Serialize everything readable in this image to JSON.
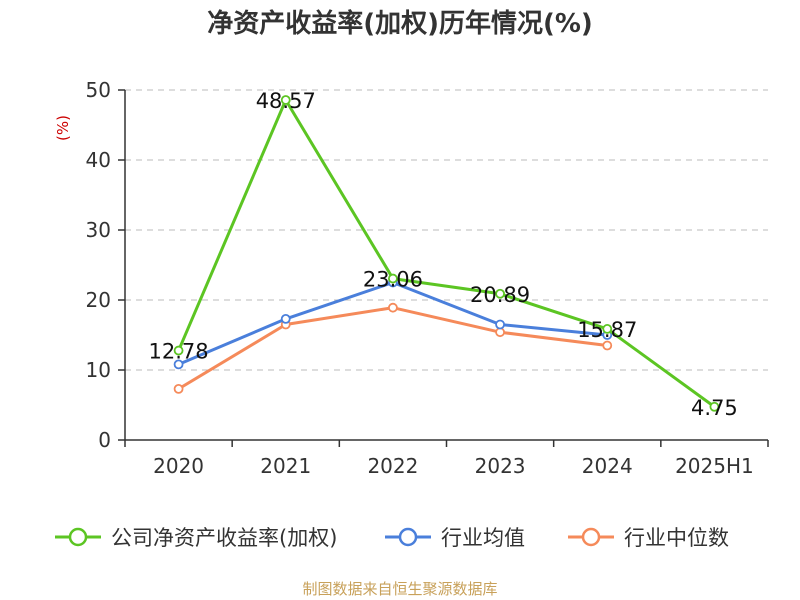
{
  "chart_data": {
    "type": "line",
    "title": "净资产收益率(加权)历年情况(%)",
    "ylabel": "(%)",
    "categories": [
      "2020",
      "2021",
      "2022",
      "2023",
      "2024",
      "2025H1"
    ],
    "ylim": [
      0,
      50
    ],
    "yticks": [
      0,
      10,
      20,
      30,
      40,
      50
    ],
    "grid": true,
    "legend_position": "bottom",
    "series": [
      {
        "name": "公司净资产收益率(加权)",
        "color": "#5cc523",
        "values": [
          12.78,
          48.57,
          23.06,
          20.89,
          15.87,
          4.75
        ],
        "labels": [
          "12.78",
          "48.57",
          "23.06",
          "20.89",
          "15.87",
          "4.75"
        ]
      },
      {
        "name": "行业均值",
        "color": "#4a7fdb",
        "values": [
          10.8,
          17.3,
          22.5,
          16.5,
          15.0,
          null
        ]
      },
      {
        "name": "行业中位数",
        "color": "#f58a5a",
        "values": [
          7.3,
          16.5,
          18.9,
          15.4,
          13.5,
          null
        ]
      }
    ]
  },
  "source": "制图数据来自恒生聚源数据库"
}
